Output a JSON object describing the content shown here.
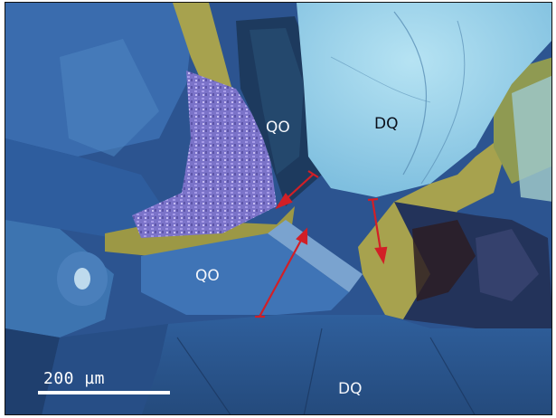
{
  "labels": {
    "qo_upper": "QO",
    "dq_upper": "DQ",
    "qo_lower": "QO",
    "dq_lower": "DQ"
  },
  "scale_bar": {
    "text": "200  µm"
  },
  "colors": {
    "background_blue": "#2a4f88",
    "upper_grain": "#9fd3ea",
    "yellow_matrix": "#a7a24e",
    "purple_mosaic": "#8a83d6",
    "arrow_red": "#d21f26",
    "scale_white": "#ffffff"
  }
}
